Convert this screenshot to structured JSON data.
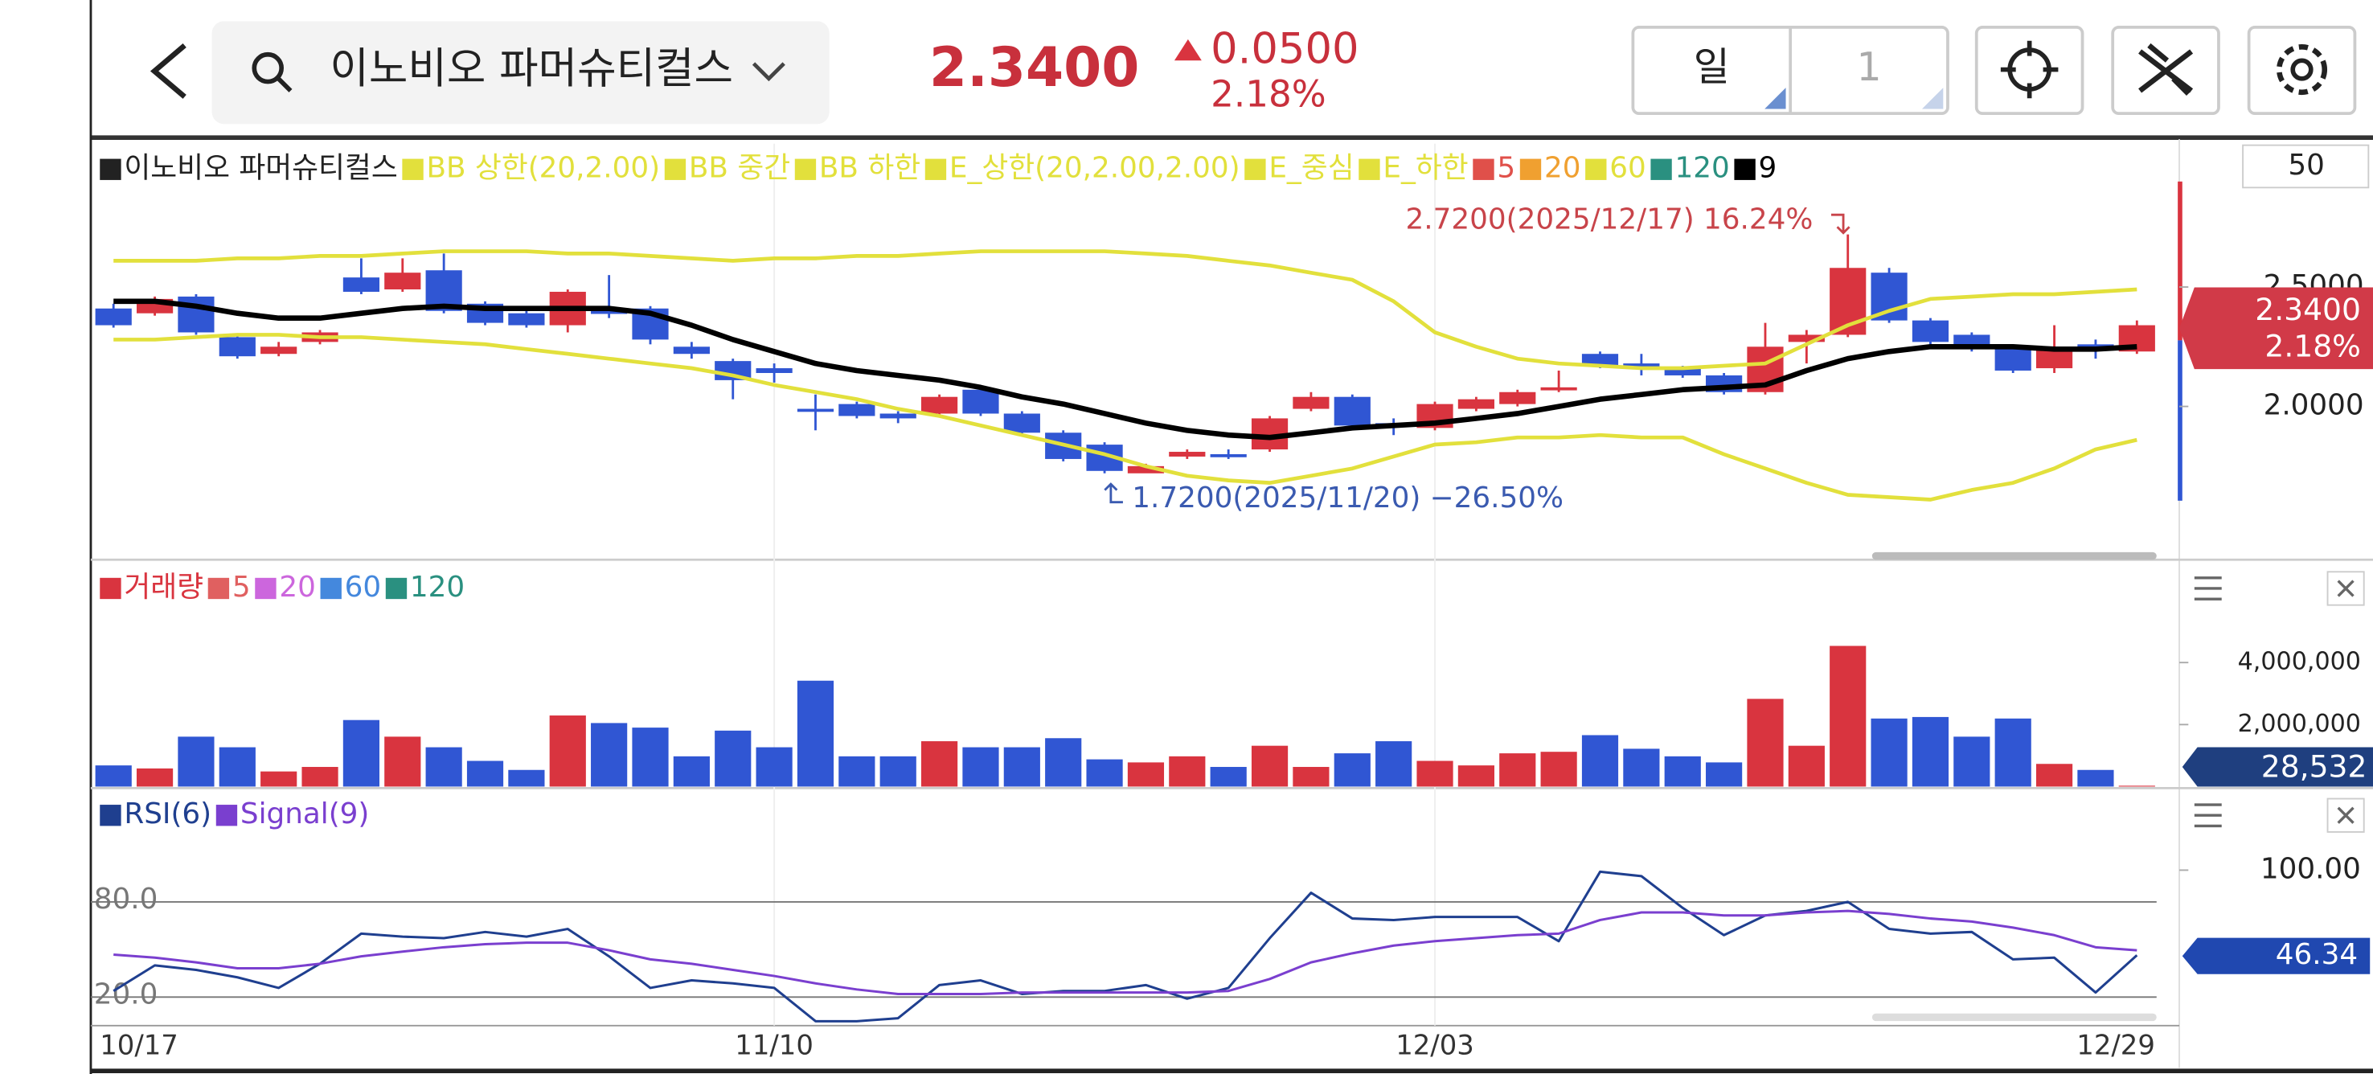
{
  "header": {
    "stock_name": "이노비오 파머슈티컬스",
    "price": "2.3400",
    "change": "0.0500",
    "change_rate": "2.18%",
    "period": "일",
    "interval": "1",
    "scale_box": "50",
    "price_badge": {
      "price": "2.3400",
      "rate": "2.18%"
    }
  },
  "chart_data": [
    {
      "type": "candlestick",
      "categories": [
        "10/17",
        null,
        null,
        null,
        null,
        null,
        null,
        null,
        null,
        null,
        null,
        null,
        null,
        null,
        null,
        null,
        "11/10",
        null,
        null,
        null,
        null,
        null,
        null,
        null,
        null,
        null,
        null,
        null,
        null,
        null,
        null,
        null,
        "12/03",
        null,
        null,
        null,
        null,
        null,
        null,
        null,
        null,
        null,
        null,
        null,
        null,
        null,
        null,
        null,
        null,
        "12/29"
      ],
      "ylim": [
        1.39,
        3.1
      ],
      "yticks": [
        {
          "value": 2,
          "label": "2.0000"
        },
        {
          "value": 2.5,
          "label": "2.5000"
        }
      ],
      "up_color": "#d9343f",
      "down_color": "#3056d3",
      "series": [
        {
          "name": "이노비오 파머슈티컬스",
          "color": "#222222",
          "open": [
            2.41,
            2.39,
            2.46,
            2.29,
            2.22,
            2.27,
            2.54,
            2.49,
            2.57,
            2.43,
            2.39,
            2.34,
            2.4,
            2.41,
            2.25,
            2.19,
            2.16,
            1.99,
            2.01,
            1.97,
            1.97,
            2.07,
            1.97,
            1.89,
            1.84,
            1.72,
            1.79,
            1.8,
            1.82,
            1.99,
            2.04,
            1.93,
            1.91,
            1.99,
            2.01,
            2.07,
            2.22,
            2.18,
            2.16,
            2.13,
            2.06,
            2.27,
            2.3,
            2.56,
            2.36,
            2.3,
            2.25,
            2.16,
            2.26,
            2.23
          ],
          "high": [
            2.43,
            2.46,
            2.47,
            2.3,
            2.27,
            2.32,
            2.62,
            2.62,
            2.64,
            2.44,
            2.4,
            2.49,
            2.55,
            2.42,
            2.27,
            2.2,
            2.18,
            2.05,
            2.02,
            1.98,
            2.05,
            2.08,
            1.98,
            1.9,
            1.85,
            1.76,
            1.82,
            1.82,
            1.96,
            2.06,
            2.05,
            1.95,
            2.02,
            2.04,
            2.07,
            2.15,
            2.23,
            2.22,
            2.17,
            2.14,
            2.35,
            2.32,
            2.72,
            2.58,
            2.37,
            2.31,
            2.26,
            2.34,
            2.28,
            2.36
          ],
          "low": [
            2.33,
            2.38,
            2.3,
            2.2,
            2.21,
            2.26,
            2.47,
            2.48,
            2.39,
            2.34,
            2.33,
            2.31,
            2.37,
            2.26,
            2.2,
            2.03,
            2.1,
            1.9,
            1.95,
            1.93,
            1.96,
            1.96,
            1.88,
            1.77,
            1.72,
            1.73,
            1.78,
            1.78,
            1.81,
            1.98,
            1.91,
            1.88,
            1.9,
            1.98,
            2.0,
            2.06,
            2.16,
            2.13,
            2.12,
            2.05,
            2.05,
            2.18,
            2.29,
            2.35,
            2.26,
            2.23,
            2.14,
            2.14,
            2.2,
            2.22
          ],
          "close": [
            2.34,
            2.45,
            2.31,
            2.21,
            2.25,
            2.31,
            2.48,
            2.56,
            2.4,
            2.35,
            2.34,
            2.48,
            2.39,
            2.28,
            2.22,
            2.11,
            2.14,
            1.98,
            1.96,
            1.95,
            2.04,
            1.97,
            1.89,
            1.78,
            1.73,
            1.75,
            1.81,
            1.79,
            1.95,
            2.04,
            1.92,
            1.92,
            2.01,
            2.03,
            2.06,
            2.08,
            2.17,
            2.16,
            2.13,
            2.06,
            2.25,
            2.3,
            2.58,
            2.36,
            2.27,
            2.24,
            2.15,
            2.25,
            2.24,
            2.34
          ]
        },
        {
          "name": "BB 상한(20,2.00)",
          "color": "#e2e03c",
          "values": [
            2.61,
            2.61,
            2.61,
            2.62,
            2.62,
            2.63,
            2.63,
            2.64,
            2.65,
            2.65,
            2.65,
            2.64,
            2.64,
            2.63,
            2.62,
            2.61,
            2.62,
            2.62,
            2.63,
            2.63,
            2.64,
            2.65,
            2.65,
            2.65,
            2.65,
            2.64,
            2.63,
            2.61,
            2.59,
            2.56,
            2.53,
            2.44,
            2.31,
            2.25,
            2.2,
            2.18,
            2.17,
            2.16,
            2.16,
            2.17,
            2.18,
            2.26,
            2.34,
            2.4,
            2.45,
            2.46,
            2.47,
            2.47,
            2.48,
            2.49
          ]
        },
        {
          "name": "BB 중간",
          "color": "#e2e03c"
        },
        {
          "name": "BB 하한",
          "color": "#e2e03c",
          "values": [
            2.28,
            2.28,
            2.29,
            2.3,
            2.3,
            2.29,
            2.29,
            2.28,
            2.27,
            2.26,
            2.24,
            2.22,
            2.2,
            2.18,
            2.16,
            2.13,
            2.09,
            2.06,
            2.03,
            1.99,
            1.96,
            1.92,
            1.88,
            1.84,
            1.8,
            1.75,
            1.71,
            1.69,
            1.68,
            1.71,
            1.74,
            1.79,
            1.84,
            1.85,
            1.87,
            1.87,
            1.88,
            1.87,
            1.87,
            1.8,
            1.74,
            1.68,
            1.63,
            1.62,
            1.61,
            1.65,
            1.68,
            1.74,
            1.82,
            1.86
          ]
        },
        {
          "name": "E_상한(20,2.00,2.00)",
          "color": "#e2e03c"
        },
        {
          "name": "E_중심",
          "color": "#e2e03c"
        },
        {
          "name": "E_하한",
          "color": "#e2e03c"
        },
        {
          "name": "5",
          "color": "#e0504a"
        },
        {
          "name": "20",
          "color": "#f0a030"
        },
        {
          "name": "60",
          "color": "#e2e03c"
        },
        {
          "name": "120",
          "color": "#2a9080"
        },
        {
          "name": "9",
          "color": "#000000",
          "values": [
            2.44,
            2.44,
            2.42,
            2.39,
            2.37,
            2.37,
            2.39,
            2.41,
            2.42,
            2.41,
            2.41,
            2.41,
            2.41,
            2.39,
            2.34,
            2.28,
            2.23,
            2.18,
            2.15,
            2.13,
            2.11,
            2.08,
            2.04,
            2.01,
            1.97,
            1.93,
            1.9,
            1.88,
            1.87,
            1.89,
            1.91,
            1.92,
            1.93,
            1.95,
            1.97,
            2.0,
            2.03,
            2.05,
            2.07,
            2.08,
            2.09,
            2.15,
            2.2,
            2.23,
            2.25,
            2.25,
            2.25,
            2.24,
            2.24,
            2.25
          ]
        }
      ],
      "annotations": [
        {
          "text": "2.7200(2025/12/17) 16.24%",
          "color": "#c8444a"
        },
        {
          "text": "1.7200(2025/11/20) −26.50%",
          "color": "#3a5ab0"
        }
      ]
    },
    {
      "type": "bar",
      "ylim": [
        0,
        7073000
      ],
      "yticks": [
        {
          "value": 4000000,
          "label": "4,000,000"
        },
        {
          "value": 2000000,
          "label": "2,000,000"
        }
      ],
      "series": [
        {
          "name": "거래량",
          "color": "#d9343f",
          "values": [
            683000,
            585000,
            1610000,
            1268000,
            488000,
            634000,
            2146000,
            1610000,
            1268000,
            829000,
            537000,
            2293000,
            2049000,
            1902000,
            976000,
            1805000,
            1268000,
            3415000,
            976000,
            976000,
            1463000,
            1268000,
            1268000,
            1561000,
            878000,
            780000,
            976000,
            634000,
            1317000,
            634000,
            1073000,
            1463000,
            829000,
            683000,
            1073000,
            1122000,
            1659000,
            1220000,
            976000,
            780000,
            2829000,
            1317000,
            4537000,
            2195000,
            2244000,
            1610000,
            2195000,
            732000,
            537000,
            28532
          ],
          "value_labels": [
            null,
            null,
            null,
            null,
            null,
            null,
            null,
            null,
            null,
            null,
            null,
            null,
            null,
            null,
            null,
            null,
            null,
            null,
            null,
            null,
            null,
            null,
            null,
            null,
            null,
            null,
            null,
            null,
            null,
            null,
            null,
            null,
            null,
            null,
            null,
            null,
            null,
            null,
            null,
            null,
            null,
            null,
            null,
            null,
            null,
            null,
            null,
            null,
            null,
            "28,532"
          ]
        },
        {
          "name": "5",
          "color": "#e06060"
        },
        {
          "name": "20",
          "color": "#cc66dd"
        },
        {
          "name": "60",
          "color": "#4488dd"
        },
        {
          "name": "120",
          "color": "#2a9080"
        }
      ]
    },
    {
      "type": "line",
      "ylim": [
        2,
        146
      ],
      "yticks": [
        {
          "value": 80,
          "label": "80.0"
        },
        {
          "value": 20,
          "label": "20.0"
        }
      ],
      "y2lim": [
        2,
        146
      ],
      "y2ticks": [
        {
          "value": 100,
          "label": "100.00"
        }
      ],
      "series": [
        {
          "name": "RSI(6)",
          "color": "#1f3f8f",
          "values": [
            23.8,
            40.0,
            37.1,
            32.4,
            25.7,
            41.0,
            60.0,
            58.1,
            57.1,
            61.0,
            58.1,
            62.9,
            45.7,
            25.7,
            30.5,
            28.6,
            25.7,
            4.8,
            4.8,
            6.7,
            27.6,
            30.5,
            21.9,
            23.8,
            23.8,
            27.6,
            19.0,
            25.7,
            57.1,
            85.7,
            69.5,
            68.6,
            70.5,
            70.5,
            70.5,
            55.2,
            99.0,
            96.2,
            76.2,
            59.0,
            71.4,
            74.3,
            80.0,
            62.9,
            60.0,
            61.0,
            43.8,
            44.8,
            22.9,
            46.34
          ]
        },
        {
          "name": "Signal(9)",
          "color": "#7a3fcf",
          "values": [
            46.7,
            44.8,
            41.9,
            38.1,
            38.1,
            41.0,
            45.7,
            48.6,
            51.4,
            53.3,
            54.3,
            54.3,
            49.5,
            43.8,
            41.0,
            37.1,
            33.3,
            28.6,
            24.8,
            21.9,
            21.9,
            21.9,
            22.9,
            22.9,
            22.9,
            22.9,
            22.9,
            23.8,
            31.4,
            41.9,
            47.6,
            52.4,
            55.2,
            57.1,
            59.0,
            60.0,
            68.6,
            73.3,
            73.3,
            71.4,
            71.4,
            73.3,
            74.3,
            72.4,
            69.5,
            67.6,
            63.8,
            59.0,
            51.4,
            49.5
          ]
        }
      ]
    }
  ]
}
